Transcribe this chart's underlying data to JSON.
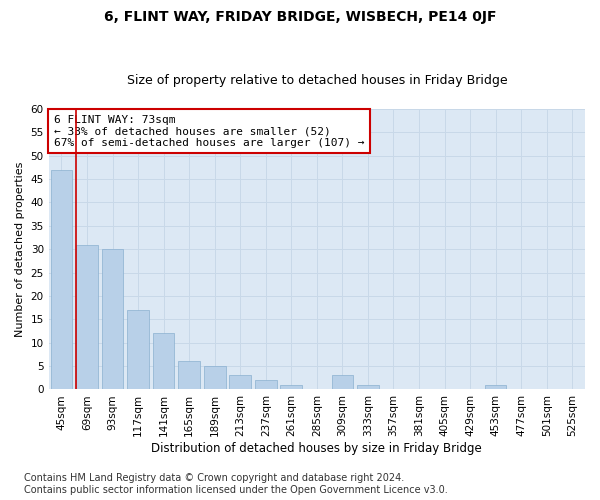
{
  "title": "6, FLINT WAY, FRIDAY BRIDGE, WISBECH, PE14 0JF",
  "subtitle": "Size of property relative to detached houses in Friday Bridge",
  "xlabel": "Distribution of detached houses by size in Friday Bridge",
  "ylabel": "Number of detached properties",
  "categories": [
    "45sqm",
    "69sqm",
    "93sqm",
    "117sqm",
    "141sqm",
    "165sqm",
    "189sqm",
    "213sqm",
    "237sqm",
    "261sqm",
    "285sqm",
    "309sqm",
    "333sqm",
    "357sqm",
    "381sqm",
    "405sqm",
    "429sqm",
    "453sqm",
    "477sqm",
    "501sqm",
    "525sqm"
  ],
  "values": [
    47,
    31,
    30,
    17,
    12,
    6,
    5,
    3,
    2,
    1,
    0,
    3,
    1,
    0,
    0,
    0,
    0,
    1,
    0,
    0,
    0
  ],
  "bar_color": "#b8d0e8",
  "bar_edge_color": "#8ab0d0",
  "grid_color": "#c8d8e8",
  "plot_bg_color": "#dce8f4",
  "fig_bg_color": "#ffffff",
  "redline_index": 1,
  "annotation_line1": "6 FLINT WAY: 73sqm",
  "annotation_line2": "← 33% of detached houses are smaller (52)",
  "annotation_line3": "67% of semi-detached houses are larger (107) →",
  "annotation_box_color": "#ffffff",
  "annotation_box_edge": "#cc0000",
  "ylim": [
    0,
    60
  ],
  "yticks": [
    0,
    5,
    10,
    15,
    20,
    25,
    30,
    35,
    40,
    45,
    50,
    55,
    60
  ],
  "footer_line1": "Contains HM Land Registry data © Crown copyright and database right 2024.",
  "footer_line2": "Contains public sector information licensed under the Open Government Licence v3.0.",
  "title_fontsize": 10,
  "subtitle_fontsize": 9,
  "ylabel_fontsize": 8,
  "xlabel_fontsize": 8.5,
  "tick_fontsize": 7.5,
  "annotation_fontsize": 8,
  "footer_fontsize": 7
}
